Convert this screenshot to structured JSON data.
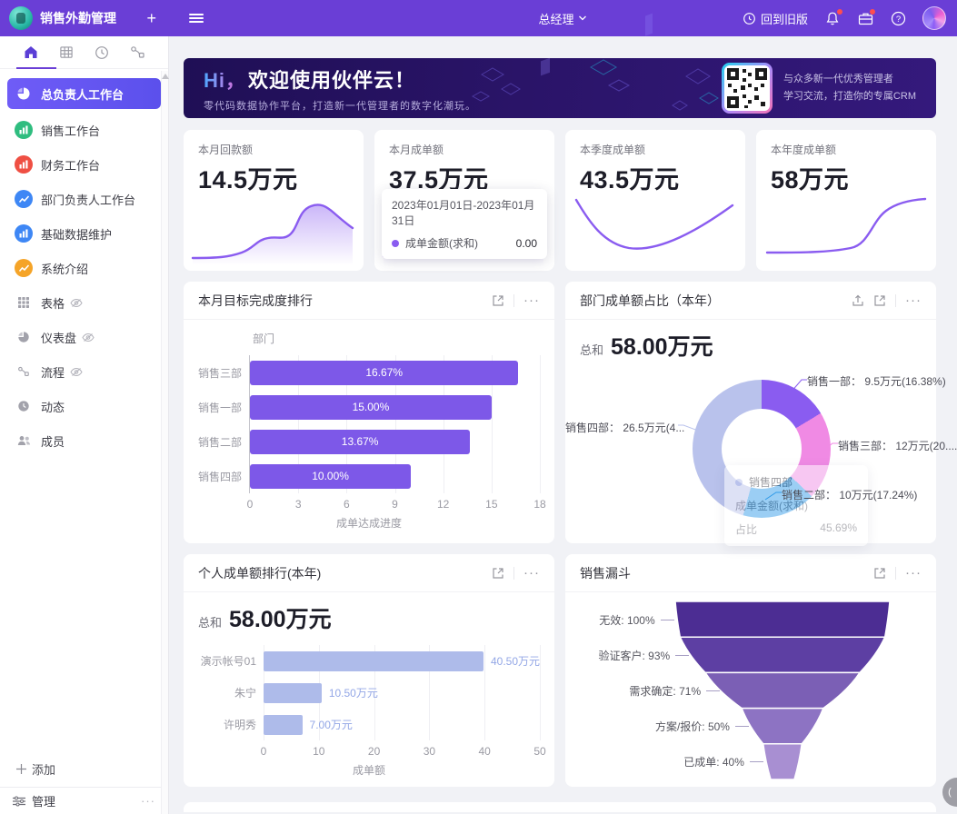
{
  "topbar": {
    "app_title": "销售外勤管理",
    "role": "总经理",
    "back_to_old_label": "回到旧版"
  },
  "sidebar": {
    "items": [
      {
        "label": "总负责人工作台",
        "active": true
      },
      {
        "label": "销售工作台"
      },
      {
        "label": "财务工作台"
      },
      {
        "label": "部门负责人工作台"
      },
      {
        "label": "基础数据维护"
      },
      {
        "label": "系统介绍"
      },
      {
        "label": "表格",
        "hidden": true
      },
      {
        "label": "仪表盘",
        "hidden": true
      },
      {
        "label": "流程",
        "hidden": true
      },
      {
        "label": "动态"
      },
      {
        "label": "成员"
      }
    ],
    "add_label": "添加",
    "manage_label": "管理"
  },
  "banner": {
    "greeting": "Hi，",
    "title": "欢迎使用伙伴云！",
    "subtitle": "零代码数据协作平台，打造新一代管理者的数字化潮玩。",
    "qr_line1": "与众多新一代优秀管理者",
    "qr_line2": "学习交流，打造你的专属CRM"
  },
  "stat_cards": [
    {
      "label": "本月回款额",
      "value": "14.5万元"
    },
    {
      "label": "本月成单额",
      "value": "37.5万元",
      "tooltip": {
        "date_range": "2023年01月01日-2023年01月31日",
        "series": "成单金额(求和)",
        "value": "0.00",
        "dot_color": "#8a5cf0"
      }
    },
    {
      "label": "本季度成单额",
      "value": "43.5万元"
    },
    {
      "label": "本年度成单额",
      "value": "58万元"
    }
  ],
  "cards": {
    "progress": {
      "title": "本月目标完成度排行"
    },
    "share": {
      "title": "部门成单额占比（本年）",
      "total_label": "总和",
      "total_value": "58.00万元"
    },
    "personal": {
      "title": "个人成单额排行(本年)",
      "total_label": "总和",
      "total_value": "58.00万元"
    },
    "funnel": {
      "title": "销售漏斗"
    }
  },
  "chart_data": [
    {
      "id": "dept_progress",
      "type": "bar",
      "orientation": "horizontal",
      "title": "本月目标完成度排行",
      "categories": [
        "销售三部",
        "销售一部",
        "销售二部",
        "销售四部"
      ],
      "values": [
        16.67,
        15.0,
        13.67,
        10.0
      ],
      "bar_labels": [
        "16.67%",
        "15.00%",
        "13.67%",
        "10.00%"
      ],
      "xlabel": "成单达成进度",
      "ylabel": "部门",
      "xlim": [
        0,
        18
      ],
      "xticks": [
        0,
        3,
        6,
        9,
        12,
        15,
        18
      ],
      "bar_color": "#7d58e8",
      "grid": true,
      "legend": "none"
    },
    {
      "id": "dept_share",
      "type": "pie",
      "title": "部门成单额占比（本年）",
      "total_label": "总和",
      "total_value": "58.00万元",
      "slices": [
        {
          "name": "销售一部",
          "value": 9.5,
          "percent": 16.38,
          "color": "#8a5cf0",
          "callout": "销售一部： 9.5万元(16.38%)"
        },
        {
          "name": "销售三部",
          "value": 12,
          "percent": 20.69,
          "color": "#f08ae4",
          "callout": "销售三部： 12万元(20...."
        },
        {
          "name": "销售二部",
          "value": 10,
          "percent": 17.24,
          "color": "#2f9ae8",
          "callout": "销售二部： 10万元(17.24%)"
        },
        {
          "name": "销售四部",
          "value": 26.5,
          "percent": 45.69,
          "color": "#b9c2ec",
          "callout": "销售四部： 26.5万元(4..."
        }
      ],
      "tooltip": {
        "title": "销售四部",
        "row1_label": "成单金额(求和)",
        "row2_label": "占比",
        "row2_value": "45.69%",
        "dot_color": "#b9c2ec"
      }
    },
    {
      "id": "personal_rank",
      "type": "bar",
      "orientation": "horizontal",
      "title": "个人成单额排行(本年)",
      "total_label": "总和",
      "total_value": "58.00万元",
      "categories": [
        "演示帐号01",
        "朱宁",
        "许明秀"
      ],
      "values": [
        40.5,
        10.5,
        7.0
      ],
      "bar_labels": [
        "40.50万元",
        "10.50万元",
        "7.00万元"
      ],
      "xlabel": "成单额",
      "xlim": [
        0,
        50
      ],
      "xticks": [
        0,
        10,
        20,
        30,
        40,
        50
      ],
      "bar_color": "#aebbea",
      "label_color": "#93a7e6",
      "grid": true,
      "legend": "none"
    },
    {
      "id": "sales_funnel",
      "type": "funnel",
      "title": "销售漏斗",
      "stages": [
        {
          "label": "无效: 100%",
          "percent": 100,
          "color": "#4c2d93"
        },
        {
          "label": "验证客户: 93%",
          "percent": 93,
          "color": "#5d3fa3"
        },
        {
          "label": "需求确定: 71%",
          "percent": 71,
          "color": "#7b5fb5"
        },
        {
          "label": "方案/报价: 50%",
          "percent": 50,
          "color": "#8d73c3"
        },
        {
          "label": "已成单: 40%",
          "percent": 40,
          "color": "#a88fd2"
        }
      ]
    }
  ]
}
